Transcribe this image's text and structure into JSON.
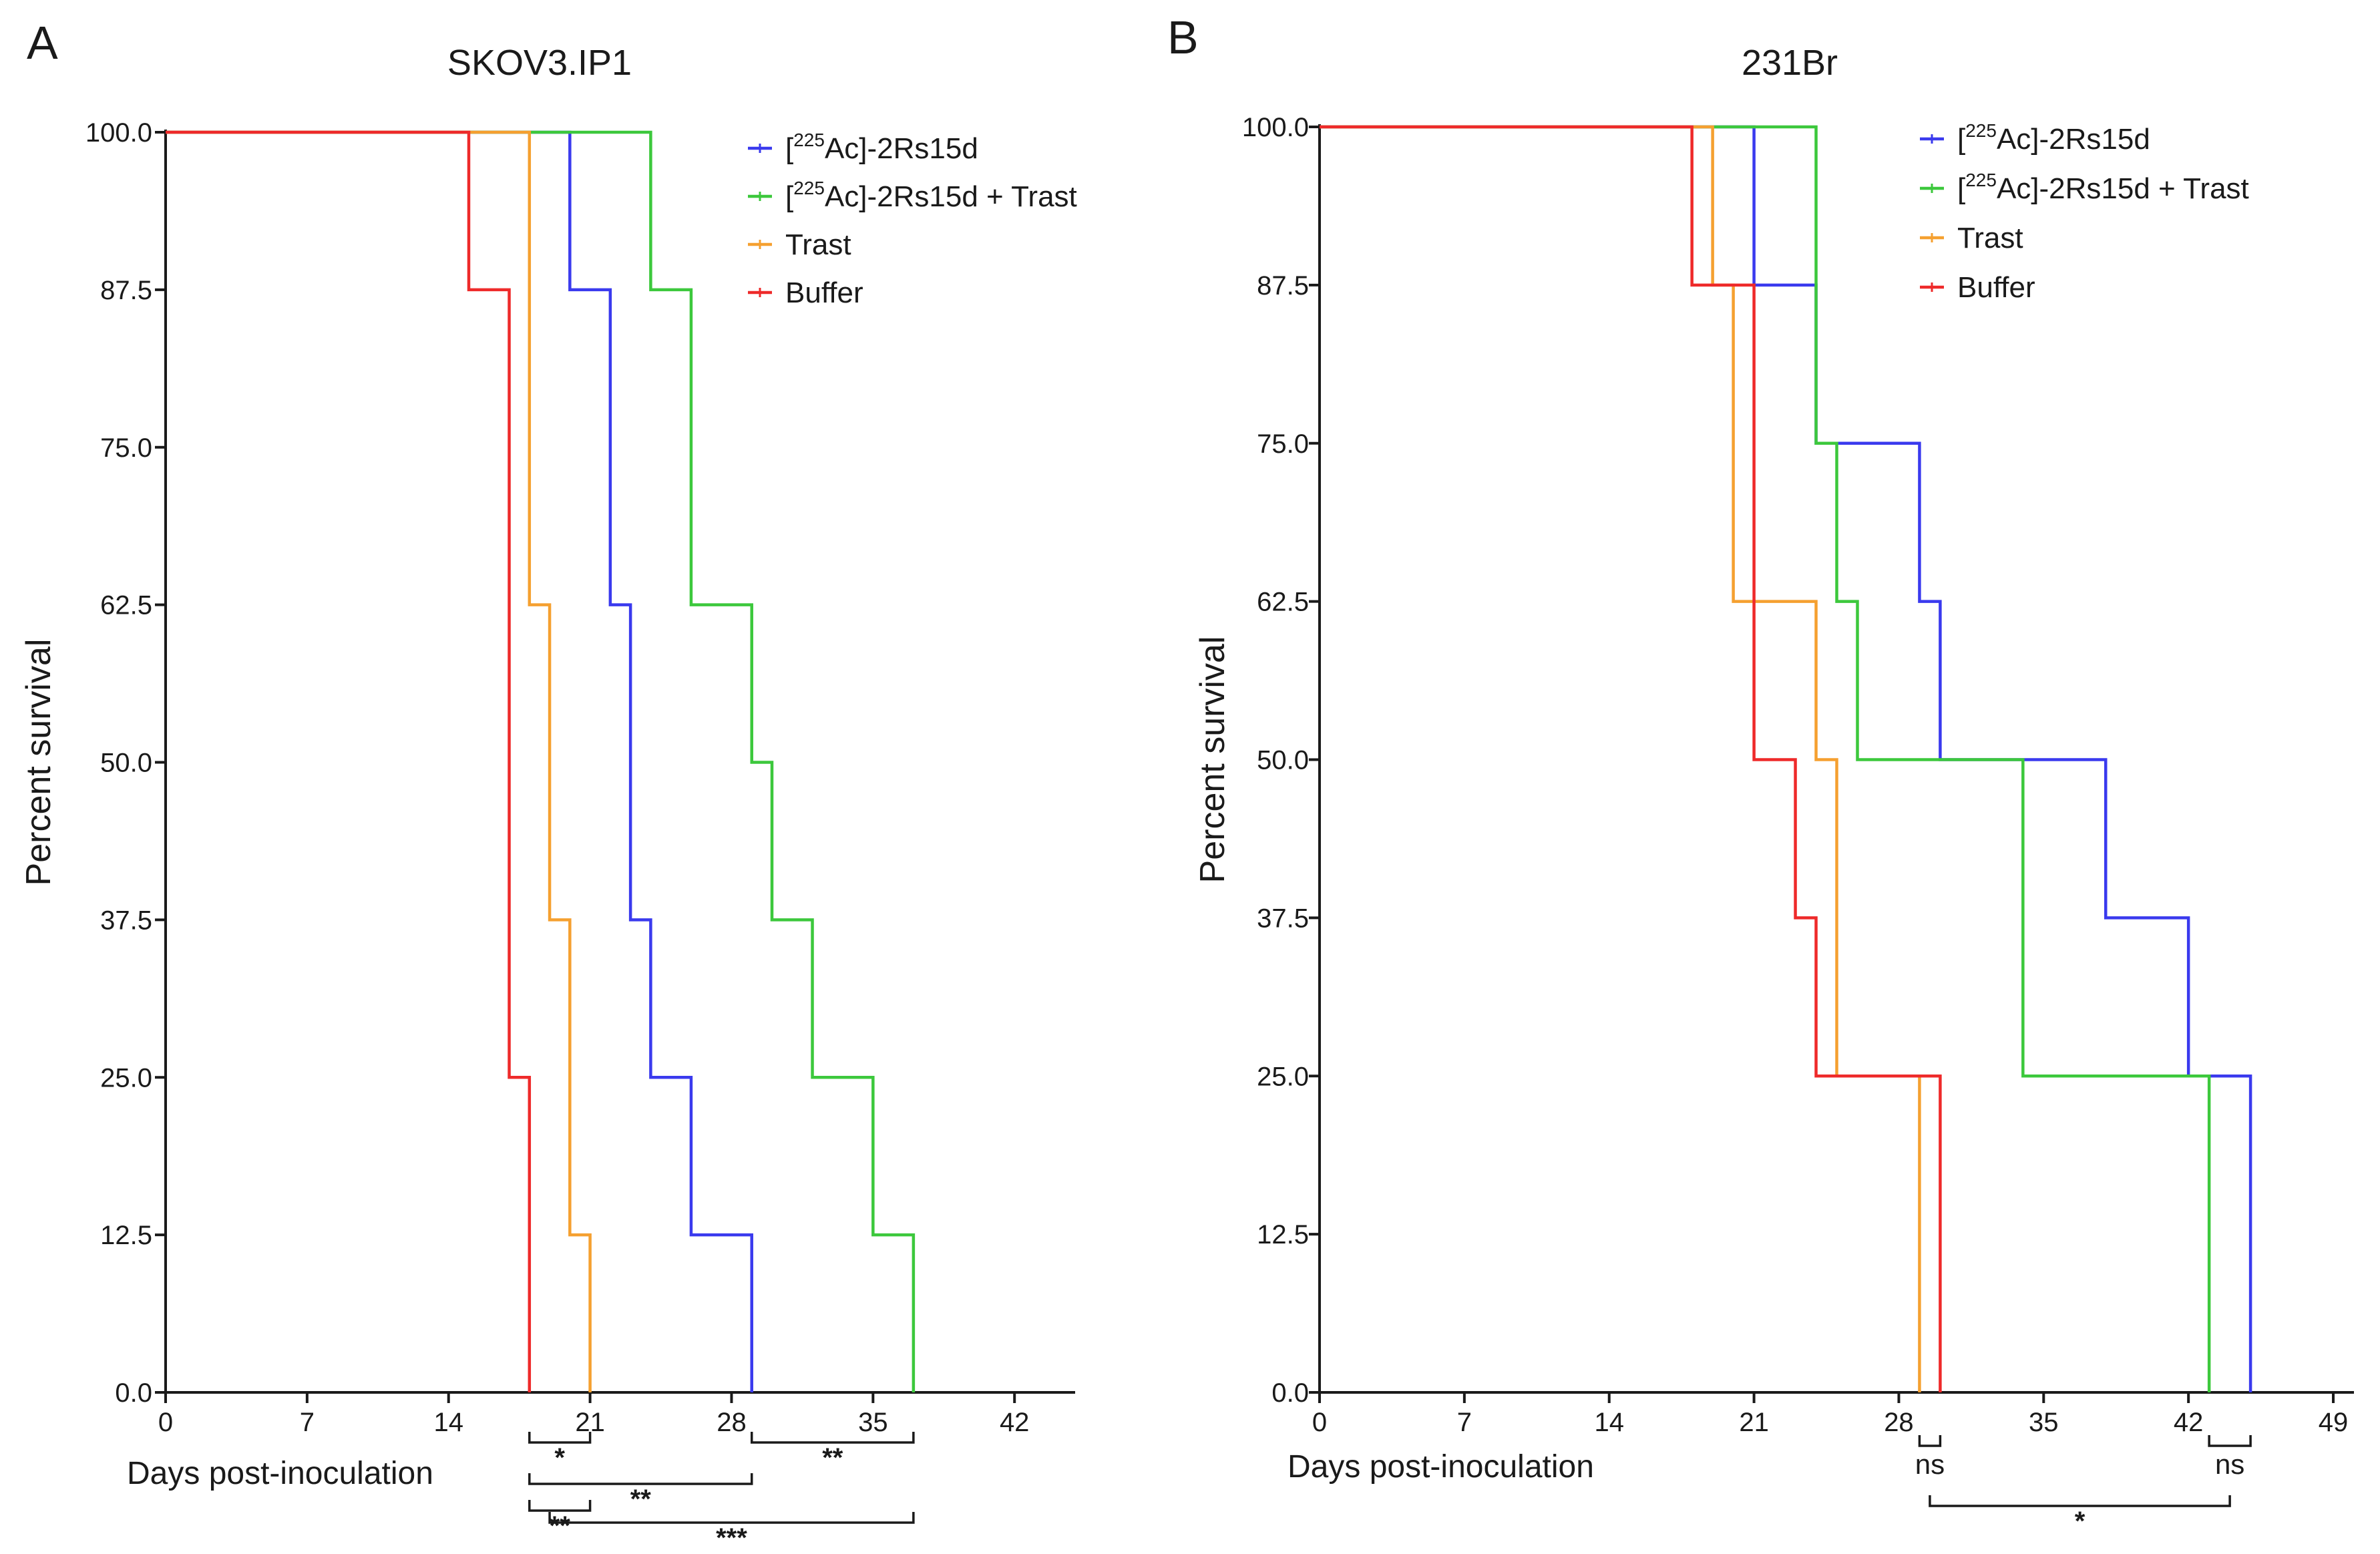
{
  "chart_data": [
    {
      "panel_label": "A",
      "type": "line",
      "subtype": "kaplan-meier",
      "title": "SKOV3.IP1",
      "xlabel": "Days post-inoculation",
      "ylabel": "Percent survival",
      "xlim": [
        0,
        45
      ],
      "ylim": [
        0,
        100
      ],
      "xticks": [
        0,
        7,
        14,
        21,
        28,
        35,
        42
      ],
      "xtick_labels": [
        "0",
        "7",
        "14",
        "21",
        "28",
        "35",
        "42"
      ],
      "yticks": [
        0,
        12.5,
        25,
        37.5,
        50,
        62.5,
        75,
        87.5,
        100
      ],
      "ytick_labels": [
        "0.0",
        "12.5",
        "25.0",
        "37.5",
        "50.0",
        "62.5",
        "75.0",
        "87.5",
        "100.0"
      ],
      "legend_position": "top-right",
      "series": [
        {
          "name_sup": "225",
          "name_pre": "[",
          "name_post": "Ac]-2Rs15d",
          "color": "#3a3aee",
          "times": [
            0,
            20,
            22,
            23,
            24,
            26,
            29
          ],
          "values": [
            100,
            87.5,
            62.5,
            37.5,
            25,
            12.5,
            0
          ]
        },
        {
          "name_sup": "225",
          "name_pre": "[",
          "name_post": "Ac]-2Rs15d + Trast",
          "color": "#3cc83c",
          "times": [
            0,
            24,
            26,
            29,
            30,
            32,
            35,
            37
          ],
          "values": [
            100,
            87.5,
            62.5,
            50,
            37.5,
            25,
            12.5,
            0
          ]
        },
        {
          "name": "Trast",
          "color": "#f5a030",
          "times": [
            0,
            18,
            19,
            20,
            21
          ],
          "values": [
            100,
            62.5,
            37.5,
            12.5,
            0
          ]
        },
        {
          "name": "Buffer",
          "color": "#ee2a2a",
          "times": [
            0,
            15,
            17,
            18
          ],
          "values": [
            100,
            87.5,
            25,
            0
          ]
        }
      ],
      "annotations": [
        {
          "label": "*",
          "from": 18,
          "to": 21,
          "row": 0,
          "type": "bracket"
        },
        {
          "label": "**",
          "from": 29,
          "to": 37,
          "row": 0,
          "type": "bracket"
        },
        {
          "label": "**",
          "from": 18,
          "to": 29,
          "row": 1,
          "type": "bracket-stagger"
        },
        {
          "label": "**",
          "from": 18,
          "to": 21,
          "row": 2,
          "type": "bracket"
        },
        {
          "label": "***",
          "from": 19,
          "to": 37,
          "row": 3,
          "type": "bracket-stagger"
        }
      ]
    },
    {
      "panel_label": "B",
      "type": "line",
      "subtype": "kaplan-meier",
      "title": "231Br",
      "xlabel": "Days post-inoculation",
      "ylabel": "Percent survival",
      "xlim": [
        0,
        50
      ],
      "ylim": [
        0,
        100
      ],
      "xticks": [
        0,
        7,
        14,
        21,
        28,
        35,
        42,
        49
      ],
      "xtick_labels": [
        "0",
        "7",
        "14",
        "21",
        "28",
        "35",
        "42",
        "49"
      ],
      "yticks": [
        0,
        12.5,
        25,
        37.5,
        50,
        62.5,
        75,
        87.5,
        100
      ],
      "ytick_labels": [
        "0.0",
        "12.5",
        "25.0",
        "37.5",
        "50.0",
        "62.5",
        "75.0",
        "87.5",
        "100.0"
      ],
      "legend_position": "top-right",
      "series": [
        {
          "name_sup": "225",
          "name_pre": "[",
          "name_post": "Ac]-2Rs15d",
          "color": "#3a3aee",
          "times": [
            0,
            21,
            24,
            29,
            30,
            38,
            42,
            45
          ],
          "values": [
            100,
            87.5,
            75,
            62.5,
            50,
            37.5,
            25,
            0
          ]
        },
        {
          "name_sup": "225",
          "name_pre": "[",
          "name_post": "Ac]-2Rs15d + Trast",
          "color": "#3cc83c",
          "times": [
            0,
            24,
            25,
            26,
            34,
            43
          ],
          "values": [
            100,
            75,
            62.5,
            50,
            25,
            0
          ]
        },
        {
          "name": "Trast",
          "color": "#f5a030",
          "times": [
            0,
            19,
            20,
            24,
            25,
            29
          ],
          "values": [
            100,
            87.5,
            62.5,
            50,
            25,
            0
          ]
        },
        {
          "name": "Buffer",
          "color": "#ee2a2a",
          "times": [
            0,
            18,
            21,
            23,
            24,
            30
          ],
          "values": [
            100,
            87.5,
            50,
            37.5,
            25,
            0
          ]
        }
      ],
      "annotations": [
        {
          "label": "ns",
          "from": 29,
          "to": 30,
          "row": 0,
          "type": "bracket"
        },
        {
          "label": "ns",
          "from": 43,
          "to": 45,
          "row": 0,
          "type": "bracket"
        },
        {
          "label": "*",
          "from": 29.5,
          "to": 44,
          "row": 2,
          "type": "bracket"
        }
      ]
    }
  ]
}
